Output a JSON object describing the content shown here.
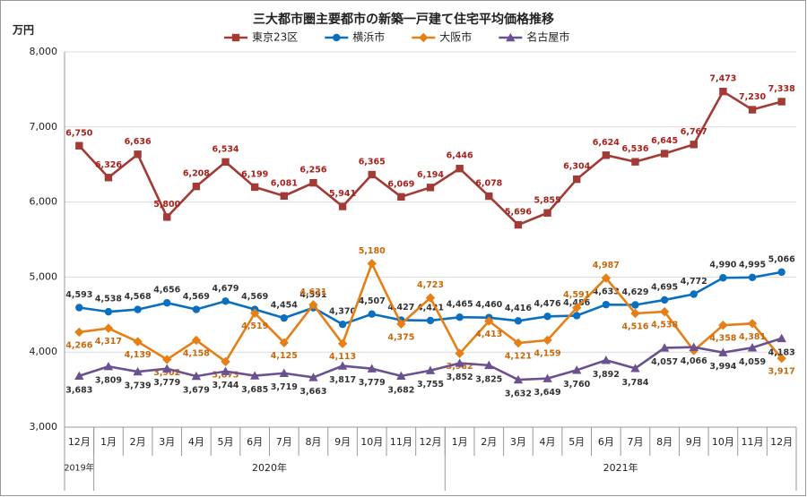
{
  "chart_data": {
    "type": "line",
    "title": "三大都市圏主要都市の新築一戸建て住宅平均価格推移",
    "y_unit": "万円",
    "categories": [
      "12月",
      "1月",
      "2月",
      "3月",
      "4月",
      "5月",
      "6月",
      "7月",
      "8月",
      "9月",
      "10月",
      "11月",
      "12月",
      "1月",
      "2月",
      "3月",
      "4月",
      "5月",
      "6月",
      "7月",
      "8月",
      "9月",
      "10月",
      "11月",
      "12月"
    ],
    "x_groups": [
      {
        "label": "2019年",
        "span": 1
      },
      {
        "label": "2020年",
        "span": 12
      },
      {
        "label": "2021年",
        "span": 12
      }
    ],
    "ylim": [
      3000,
      8000
    ],
    "yticks": [
      {
        "value": 3000,
        "label": "3,000"
      },
      {
        "value": 4000,
        "label": "4,000"
      },
      {
        "value": 5000,
        "label": "5,000"
      },
      {
        "value": 6000,
        "label": "6,000"
      },
      {
        "value": 7000,
        "label": "7,000"
      },
      {
        "value": 8000,
        "label": "8,000"
      }
    ],
    "grid": true,
    "legend": "top",
    "series": [
      {
        "name": "東京23区",
        "color": "#a23b35",
        "marker": "square",
        "label_color": "#a8211b",
        "values": [
          6750,
          6326,
          6636,
          5800,
          6208,
          6534,
          6199,
          6081,
          6256,
          5941,
          6365,
          6069,
          6194,
          6446,
          6078,
          5696,
          5855,
          6304,
          6624,
          6536,
          6645,
          6767,
          7473,
          7230,
          7338
        ],
        "value_labels": [
          "6,750",
          "6,326",
          "6,636",
          "5,800",
          "6,208",
          "6,534",
          "6,199",
          "6,081",
          "6,256",
          "5,941",
          "6,365",
          "6,069",
          "6,194",
          "6,446",
          "6,078",
          "5,696",
          "5,855",
          "6,304",
          "6,624",
          "6,536",
          "6,645",
          "6,767",
          "7,473",
          "7,230",
          "7,338"
        ]
      },
      {
        "name": "横浜市",
        "color": "#0b6fbf",
        "marker": "circle",
        "label_color": "#333333",
        "values": [
          4593,
          4538,
          4568,
          4656,
          4569,
          4679,
          4569,
          4454,
          4591,
          4370,
          4507,
          4427,
          4421,
          4465,
          4460,
          4416,
          4476,
          4486,
          4633,
          4629,
          4695,
          4772,
          4990,
          4995,
          5066
        ],
        "value_labels": [
          "4,593",
          "4,538",
          "4,568",
          "4,656",
          "4,569",
          "4,679",
          "4,569",
          "4,454",
          "4,591",
          "4,370",
          "4,507",
          "4,427",
          "4,421",
          "4,465",
          "4,460",
          "4,416",
          "4,476",
          "4,486",
          "4,633",
          "4,629",
          "4,695",
          "4,772",
          "4,990",
          "4,995",
          "5,066"
        ]
      },
      {
        "name": "大阪市",
        "color": "#e57f16",
        "marker": "diamond",
        "label_color": "#c9670b",
        "values": [
          4266,
          4317,
          4139,
          3902,
          4158,
          3873,
          4519,
          4125,
          4631,
          4113,
          5180,
          4375,
          4723,
          3982,
          4413,
          4121,
          4159,
          4591,
          4987,
          4516,
          4538,
          4020,
          4358,
          4381,
          3917
        ],
        "value_labels": [
          "4,266",
          "4,317",
          "4,139",
          "3,902",
          "4,158",
          "3,873",
          "4,519",
          "4,125",
          "4,631",
          "4,113",
          "5,180",
          "4,375",
          "4,723",
          "3,982",
          "4,413",
          "4,121",
          "4,159",
          "4,591",
          "4,987",
          "4,516",
          "4,538",
          null,
          "4,358",
          "4,381",
          "3,917"
        ]
      },
      {
        "name": "名古屋市",
        "color": "#6b5190",
        "marker": "triangle",
        "label_color": "#333333",
        "values": [
          3683,
          3809,
          3739,
          3779,
          3679,
          3744,
          3685,
          3719,
          3663,
          3817,
          3779,
          3682,
          3755,
          3852,
          3825,
          3632,
          3649,
          3760,
          3892,
          3784,
          4057,
          4066,
          3994,
          4059,
          4183
        ],
        "value_labels": [
          "3,683",
          "3,809",
          "3,739",
          "3,779",
          "3,679",
          "3,744",
          "3,685",
          "3,719",
          "3,663",
          "3,817",
          "3,779",
          "3,682",
          "3,755",
          "3,852",
          "3,825",
          "3,632",
          "3,649",
          "3,760",
          "3,892",
          "3,784",
          "4,057",
          "4,066",
          "3,994",
          "4,059",
          "4,183"
        ]
      }
    ]
  }
}
